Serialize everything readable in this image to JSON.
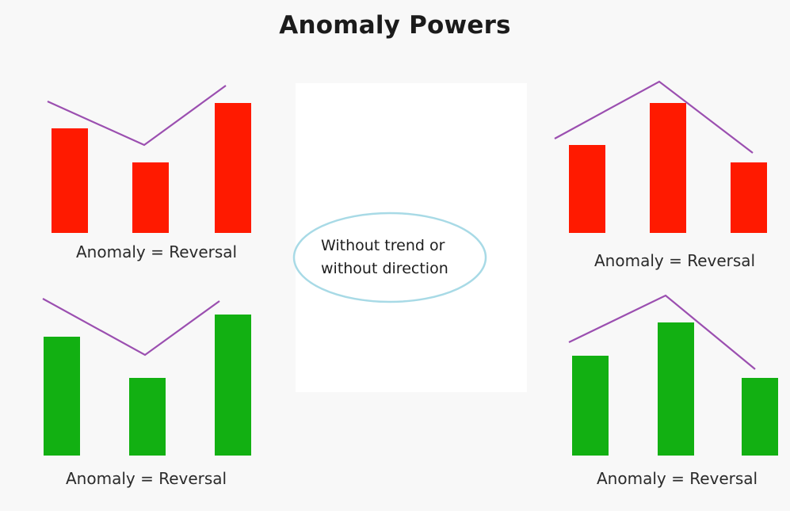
{
  "title": "Anomaly Powers",
  "center_note": {
    "line1": "Without trend or",
    "line2": "without direction"
  },
  "colors": {
    "red_bar": "#ff1a00",
    "green_bar": "#12b012",
    "line": "#9b4fb0",
    "ellipse_border": "#a8dae6"
  },
  "panels": [
    {
      "id": "top-left",
      "color": "red",
      "relative_heights": [
        0.81,
        0.55,
        1.0
      ],
      "pattern": "V",
      "caption": "Anomaly = Reversal"
    },
    {
      "id": "top-right",
      "color": "red",
      "relative_heights": [
        0.68,
        1.0,
        0.55
      ],
      "pattern": "inverted-V",
      "caption": "Anomaly = Reversal"
    },
    {
      "id": "bottom-left",
      "color": "green",
      "relative_heights": [
        0.84,
        0.55,
        1.0
      ],
      "pattern": "V",
      "caption": "Anomaly = Reversal"
    },
    {
      "id": "bottom-right",
      "color": "green",
      "relative_heights": [
        0.75,
        1.0,
        0.58
      ],
      "pattern": "inverted-V",
      "caption": "Anomaly = Reversal"
    }
  ]
}
